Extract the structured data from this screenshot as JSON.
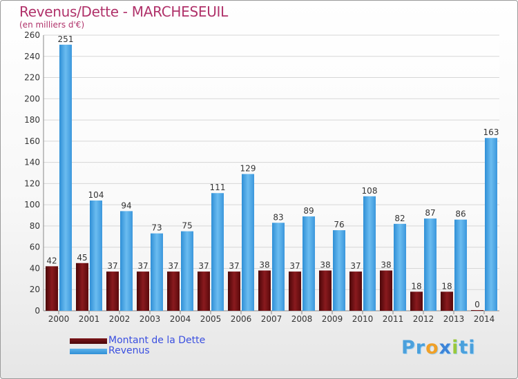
{
  "chart_data": {
    "type": "bar",
    "title": "Revenus/Dette - MARCHESEUIL",
    "subtitle": "(en milliers d'€)",
    "categories": [
      "2000",
      "2001",
      "2002",
      "2003",
      "2004",
      "2005",
      "2006",
      "2007",
      "2008",
      "2009",
      "2010",
      "2011",
      "2012",
      "2013",
      "2014"
    ],
    "series": [
      {
        "name": "Montant de la Dette",
        "color": "#6e1216",
        "values": [
          42,
          45,
          37,
          37,
          37,
          37,
          37,
          38,
          37,
          38,
          37,
          38,
          18,
          18,
          0
        ]
      },
      {
        "name": "Revenus",
        "color": "#4aa3e4",
        "values": [
          251,
          104,
          94,
          73,
          75,
          111,
          129,
          83,
          89,
          76,
          108,
          82,
          87,
          86,
          163
        ]
      }
    ],
    "ylim": [
      0,
      260
    ],
    "yticks": [
      0,
      20,
      40,
      60,
      80,
      100,
      120,
      140,
      160,
      180,
      200,
      220,
      240,
      260
    ],
    "grid": true,
    "legend_position": "bottom-left"
  },
  "logo": {
    "text_p": "Pr",
    "text_o": "o",
    "text_x": "x",
    "text_i": "i",
    "text_ti": "ti"
  }
}
